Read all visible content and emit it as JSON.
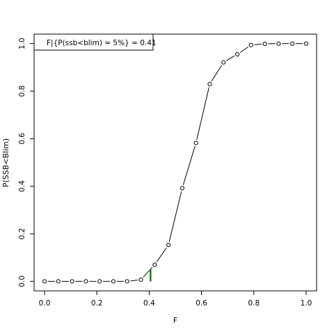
{
  "chart_data": {
    "type": "line",
    "xlabel": "F",
    "ylabel": "P(SSB<Blim)",
    "xlim": [
      -0.04,
      1.04
    ],
    "ylim": [
      -0.04,
      1.04
    ],
    "xticks": [
      0.0,
      0.2,
      0.4,
      0.6,
      0.8,
      1.0
    ],
    "yticks": [
      0.0,
      0.2,
      0.4,
      0.6,
      0.8,
      1.0
    ],
    "xtick_labels": [
      "0.0",
      "0.2",
      "0.4",
      "0.6",
      "0.8",
      "1.0"
    ],
    "ytick_labels": [
      "0.0",
      "0.2",
      "0.4",
      "0.6",
      "0.8",
      "1.0"
    ],
    "grid": false,
    "legend": {
      "text": "F|{P(ssb<blim) = 5%} =  0.41",
      "position": "top-left"
    },
    "series": [
      {
        "x": [
          0.0,
          0.0526,
          0.1053,
          0.1579,
          0.2105,
          0.2632,
          0.3158,
          0.3684,
          0.4211,
          0.4737,
          0.5263,
          0.5789,
          0.6316,
          0.6842,
          0.7368,
          0.7895,
          0.8421,
          0.8947,
          0.9474,
          1.0
        ],
        "y": [
          0.0,
          0.0,
          0.0,
          0.0,
          0.0,
          0.0,
          0.0,
          0.007,
          0.07,
          0.153,
          0.392,
          0.582,
          0.83,
          0.921,
          0.955,
          0.994,
          0.999,
          1.0,
          1.0,
          1.0
        ],
        "color": "#000000",
        "marker": "open-circle"
      }
    ],
    "marker_line": {
      "x": 0.405,
      "y_from": 0.0,
      "y_to": 0.05,
      "color": "#1a7a1a"
    }
  }
}
